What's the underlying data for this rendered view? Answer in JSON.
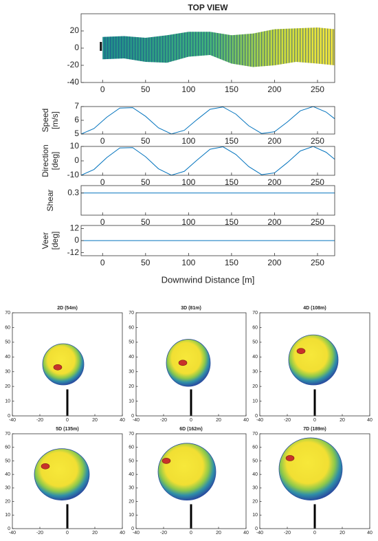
{
  "chart_data": [
    {
      "type": "band",
      "title": "TOP VIEW",
      "x": [
        0,
        25,
        50,
        75,
        100,
        125,
        150,
        175,
        200,
        225,
        250,
        270
      ],
      "upper": [
        13,
        14,
        12,
        15,
        19,
        19,
        15,
        17,
        22,
        23,
        24,
        22
      ],
      "lower": [
        -13,
        -12,
        -16,
        -17,
        -10,
        -8,
        -18,
        -22,
        -20,
        -16,
        -18,
        -20
      ],
      "xlim": [
        -25,
        270
      ],
      "ylim": [
        -40,
        40
      ],
      "xticks": [
        0,
        50,
        100,
        150,
        200,
        250
      ],
      "yticks": [
        -40,
        -20,
        0,
        20
      ]
    },
    {
      "type": "line",
      "ylabel": [
        "Speed",
        "[m/s]"
      ],
      "color": "#0072bd",
      "x": [
        -25,
        -10,
        5,
        20,
        35,
        50,
        65,
        80,
        95,
        110,
        125,
        140,
        155,
        170,
        185,
        200,
        215,
        230,
        245,
        260,
        270
      ],
      "values": [
        5.0,
        5.4,
        6.23,
        6.89,
        6.92,
        6.29,
        5.45,
        5.01,
        5.27,
        6.06,
        6.8,
        6.97,
        6.45,
        5.6,
        5.04,
        5.17,
        5.88,
        6.69,
        7.0,
        6.6,
        6.11
      ],
      "xlim": [
        -25,
        270
      ],
      "ylim": [
        5,
        7
      ],
      "xticks": [
        0,
        50,
        100,
        150,
        200,
        250
      ],
      "yticks": [
        5,
        6,
        7
      ]
    },
    {
      "type": "line",
      "ylabel": [
        "Direction",
        "[deg]"
      ],
      "color": "#0072bd",
      "x": [
        -25,
        -10,
        5,
        20,
        35,
        50,
        65,
        80,
        95,
        110,
        125,
        140,
        155,
        170,
        185,
        200,
        215,
        230,
        245,
        260,
        270
      ],
      "values": [
        -9.98,
        -5.97,
        2.31,
        8.94,
        9.18,
        2.87,
        -5.49,
        -9.93,
        -7.27,
        0.58,
        8.03,
        9.73,
        4.46,
        -3.96,
        -9.56,
        -8.35,
        -1.16,
        6.86,
        9.99,
        5.96,
        1.06
      ],
      "xlim": [
        -25,
        270
      ],
      "ylim": [
        -10,
        10
      ],
      "xticks": [
        0,
        50,
        100,
        150,
        200,
        250
      ],
      "yticks": [
        -10,
        0,
        10
      ]
    },
    {
      "type": "line",
      "ylabel": [
        "Shear"
      ],
      "color": "#0072bd",
      "x": [
        -25,
        270
      ],
      "values": [
        0.3,
        0.3
      ],
      "xlim": [
        -25,
        270
      ],
      "ylim": [
        0,
        0.4
      ],
      "xticks": [
        0,
        50,
        100,
        150,
        200,
        250
      ],
      "yticks": [
        0.3
      ]
    },
    {
      "type": "line",
      "ylabel": [
        "Veer",
        "[deg]"
      ],
      "color": "#0072bd",
      "xlabel": "Downwind Distance [m]",
      "x": [
        -25,
        270
      ],
      "values": [
        0,
        0
      ],
      "xlim": [
        -25,
        270
      ],
      "ylim": [
        -15,
        15
      ],
      "xticks": [
        0,
        50,
        100,
        150,
        200,
        250
      ],
      "yticks": [
        -12,
        0,
        12
      ]
    },
    {
      "type": "cross-section",
      "title": "2D (54m)",
      "wake_center": [
        -3,
        35
      ],
      "wake_radius": [
        15,
        14
      ],
      "core": [
        -7,
        33
      ],
      "tower_height": 18,
      "xlim": [
        -40,
        40
      ],
      "ylim": [
        0,
        70
      ],
      "xticks": [
        -40,
        -20,
        0,
        20,
        40
      ],
      "yticks": [
        0,
        10,
        20,
        30,
        40,
        50,
        60,
        70
      ]
    },
    {
      "type": "cross-section",
      "title": "3D (81m)",
      "wake_center": [
        -2,
        36
      ],
      "wake_radius": [
        16,
        16
      ],
      "core": [
        -6,
        36
      ],
      "tower_height": 18,
      "xlim": [
        -40,
        40
      ],
      "ylim": [
        0,
        70
      ],
      "xticks": [
        -40,
        -20,
        0,
        20,
        40
      ],
      "yticks": [
        0,
        10,
        20,
        30,
        40,
        50,
        60,
        70
      ]
    },
    {
      "type": "cross-section",
      "title": "4D (108m)",
      "wake_center": [
        -1,
        38
      ],
      "wake_radius": [
        18,
        17
      ],
      "core": [
        -10,
        44
      ],
      "tower_height": 18,
      "xlim": [
        -40,
        40
      ],
      "ylim": [
        0,
        70
      ],
      "xticks": [
        -40,
        -20,
        0,
        20,
        40
      ],
      "yticks": [
        0,
        10,
        20,
        30,
        40,
        50,
        60,
        70
      ]
    },
    {
      "type": "cross-section",
      "title": "5D (135m)",
      "wake_center": [
        -4,
        40
      ],
      "wake_radius": [
        20,
        19
      ],
      "core": [
        -16,
        46
      ],
      "tower_height": 18,
      "xlim": [
        -40,
        40
      ],
      "ylim": [
        0,
        70
      ],
      "xticks": [
        -40,
        -20,
        0,
        20,
        40
      ],
      "yticks": [
        0,
        10,
        20,
        30,
        40,
        50,
        60,
        70
      ]
    },
    {
      "type": "cross-section",
      "title": "6D (162m)",
      "wake_center": [
        -3,
        42
      ],
      "wake_radius": [
        21,
        21
      ],
      "core": [
        -18,
        50
      ],
      "tower_height": 18,
      "xlim": [
        -40,
        40
      ],
      "ylim": [
        0,
        70
      ],
      "xticks": [
        -40,
        -20,
        0,
        20,
        40
      ],
      "yticks": [
        0,
        10,
        20,
        30,
        40,
        50,
        60,
        70
      ]
    },
    {
      "type": "cross-section",
      "title": "7D (189m)",
      "wake_center": [
        -3,
        44
      ],
      "wake_radius": [
        23,
        23
      ],
      "core": [
        -18,
        52
      ],
      "tower_height": 18,
      "xlim": [
        -40,
        40
      ],
      "ylim": [
        0,
        70
      ],
      "xticks": [
        -40,
        -20,
        0,
        20,
        40
      ],
      "yticks": [
        0,
        10,
        20,
        30,
        40,
        50,
        60,
        70
      ]
    }
  ]
}
